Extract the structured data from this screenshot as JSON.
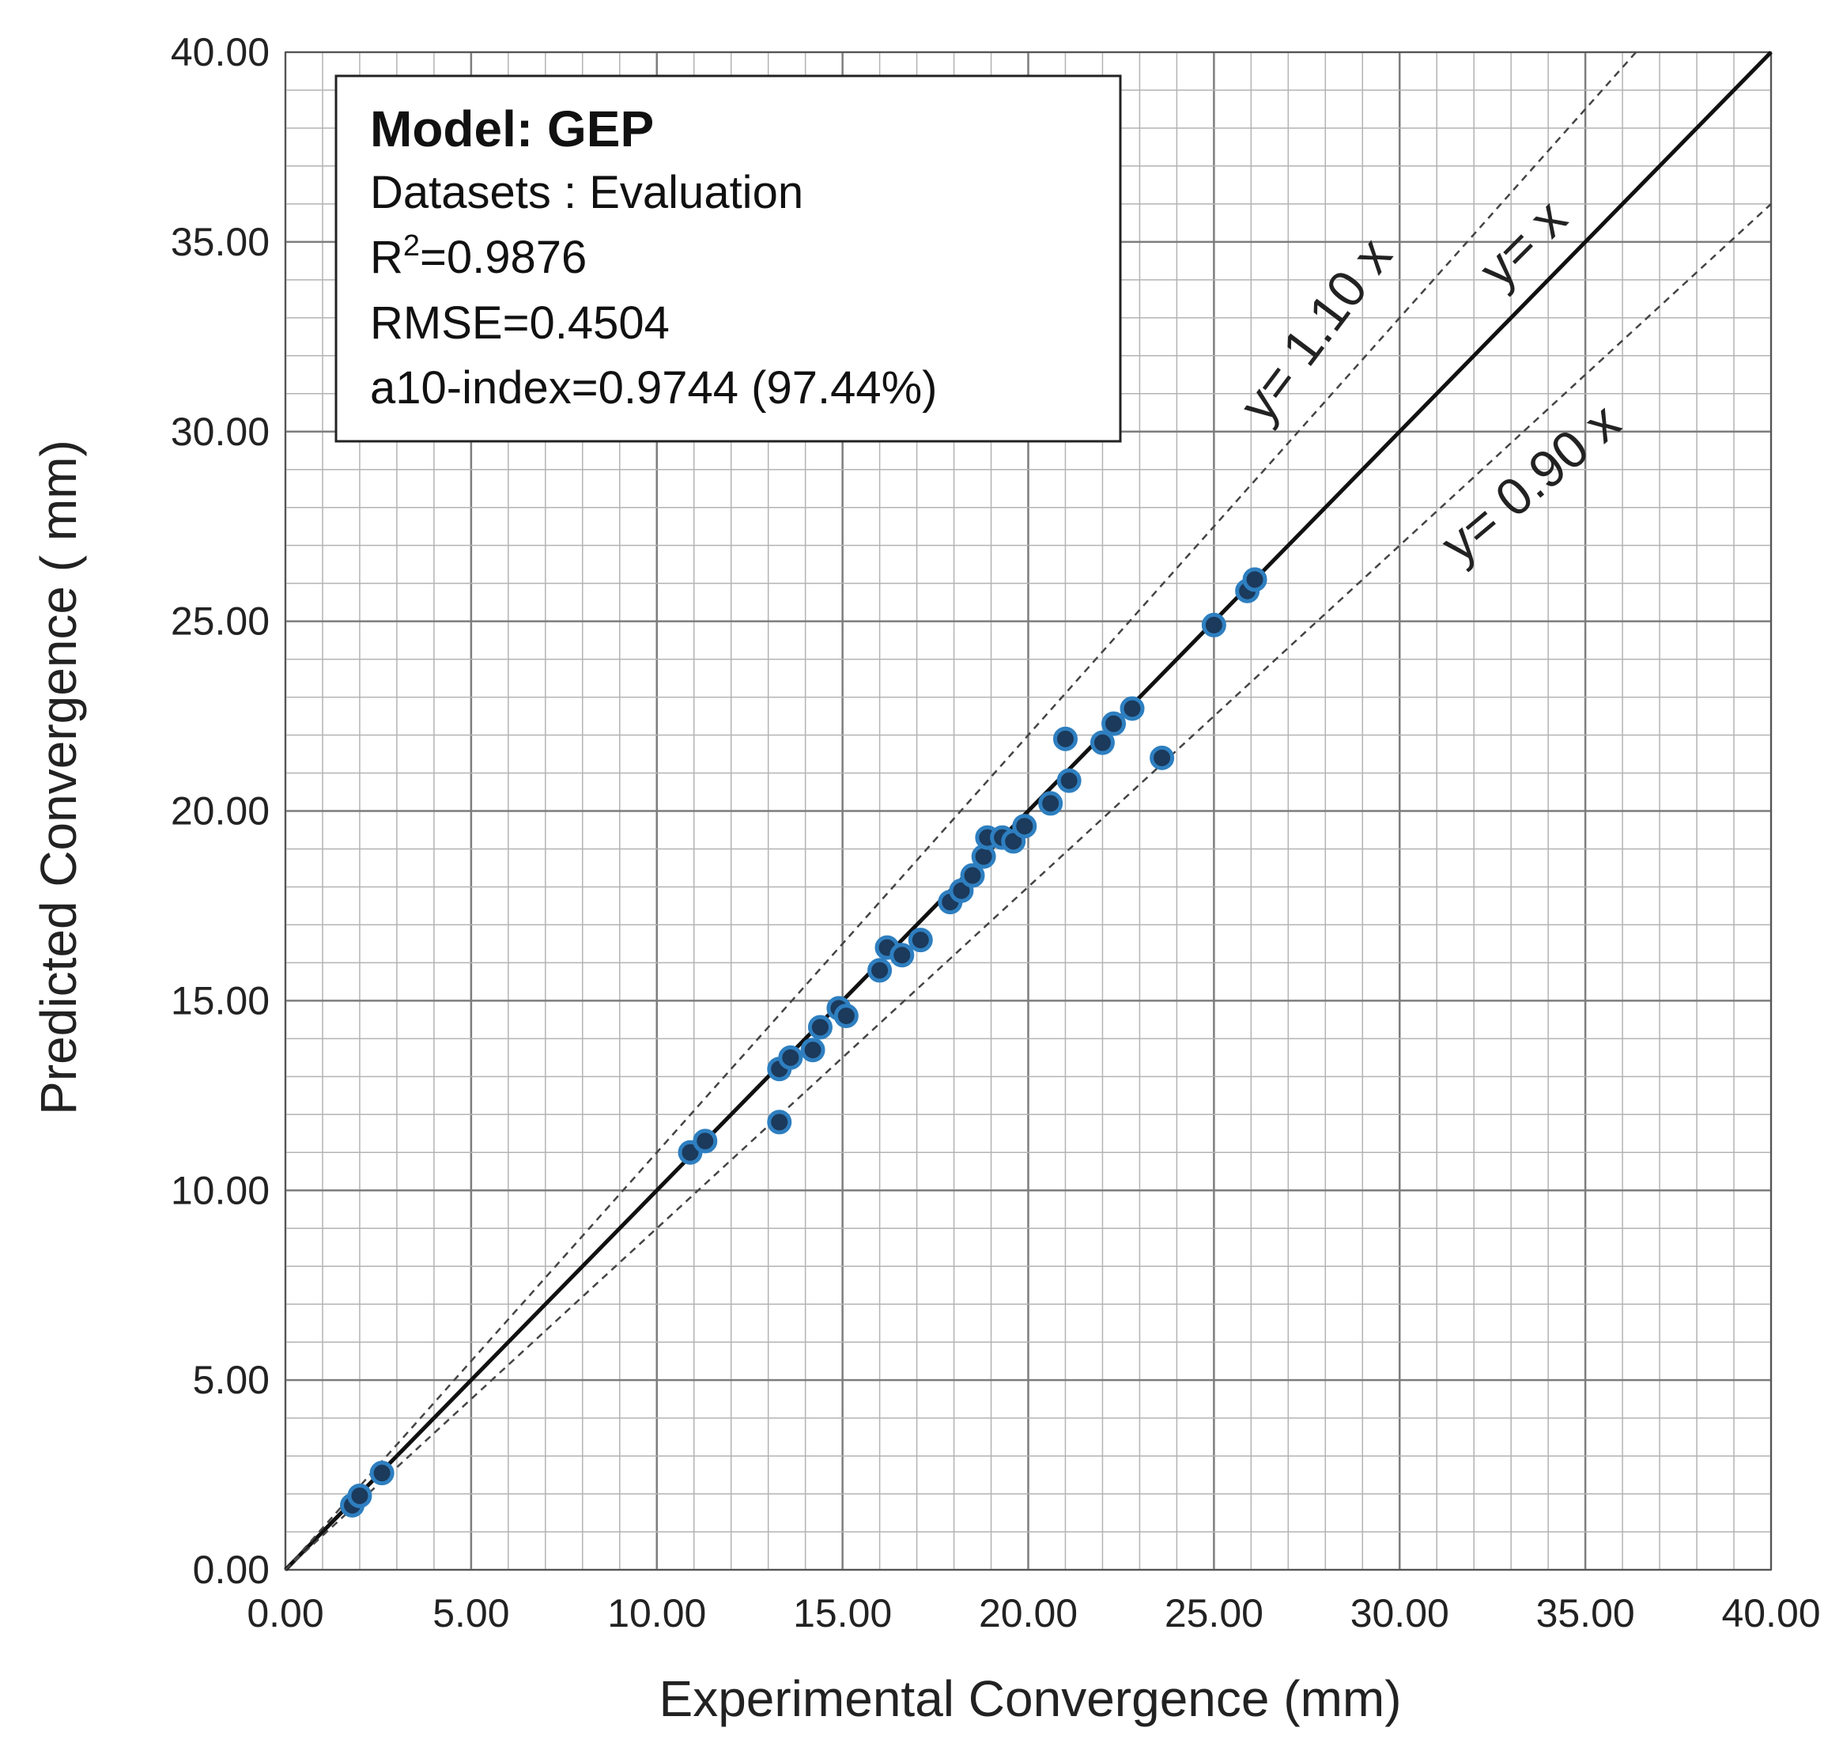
{
  "chart_data": {
    "type": "scatter",
    "xlabel": "Experimental  Convergence (mm)",
    "ylabel": "Predicted Convergence  ( mm)",
    "xlim": [
      0,
      40
    ],
    "ylim": [
      0,
      40
    ],
    "x_ticks": [
      "0.00",
      "5.00",
      "10.00",
      "15.00",
      "20.00",
      "25.00",
      "30.00",
      "35.00",
      "40.00"
    ],
    "y_ticks": [
      "0.00",
      "5.00",
      "10.00",
      "15.00",
      "20.00",
      "25.00",
      "30.00",
      "35.00",
      "40.00"
    ],
    "minor_grid_step": 1,
    "major_grid_step": 5,
    "legend": {
      "title": "Model: GEP",
      "dataset": "Datasets : Evaluation",
      "r2_prefix": "R",
      "r2_sup": "2",
      "r2_value": "=0.9876",
      "rmse": "RMSE=0.4504",
      "a10": "a10-index=0.9744  (97.44%)"
    },
    "reference_lines": [
      {
        "name": "y= x",
        "slope": 1.0,
        "style": "solid"
      },
      {
        "name": "y= 1.10 x",
        "slope": 1.1,
        "style": "dashed"
      },
      {
        "name": "y= 0.90 x",
        "slope": 0.9,
        "style": "dashed"
      }
    ],
    "series": [
      {
        "name": "Evaluation",
        "color": "#1b3a5c",
        "edge_color": "#2e7fc0",
        "points": [
          {
            "x": 1.8,
            "y": 1.7
          },
          {
            "x": 2.0,
            "y": 1.95
          },
          {
            "x": 2.6,
            "y": 2.55
          },
          {
            "x": 10.9,
            "y": 11.0
          },
          {
            "x": 11.3,
            "y": 11.3
          },
          {
            "x": 13.3,
            "y": 11.8
          },
          {
            "x": 13.3,
            "y": 13.2
          },
          {
            "x": 13.6,
            "y": 13.5
          },
          {
            "x": 14.2,
            "y": 13.7
          },
          {
            "x": 14.4,
            "y": 14.3
          },
          {
            "x": 14.9,
            "y": 14.8
          },
          {
            "x": 15.1,
            "y": 14.6
          },
          {
            "x": 16.0,
            "y": 15.8
          },
          {
            "x": 16.2,
            "y": 16.4
          },
          {
            "x": 16.6,
            "y": 16.2
          },
          {
            "x": 17.1,
            "y": 16.6
          },
          {
            "x": 17.9,
            "y": 17.6
          },
          {
            "x": 18.2,
            "y": 17.9
          },
          {
            "x": 18.5,
            "y": 18.3
          },
          {
            "x": 18.8,
            "y": 18.8
          },
          {
            "x": 18.9,
            "y": 19.3
          },
          {
            "x": 19.3,
            "y": 19.3
          },
          {
            "x": 19.6,
            "y": 19.2
          },
          {
            "x": 19.9,
            "y": 19.6
          },
          {
            "x": 20.6,
            "y": 20.2
          },
          {
            "x": 21.0,
            "y": 21.9
          },
          {
            "x": 21.1,
            "y": 20.8
          },
          {
            "x": 22.0,
            "y": 21.8
          },
          {
            "x": 22.3,
            "y": 22.3
          },
          {
            "x": 22.8,
            "y": 22.7
          },
          {
            "x": 23.6,
            "y": 21.4
          },
          {
            "x": 25.0,
            "y": 24.9
          },
          {
            "x": 25.9,
            "y": 25.8
          },
          {
            "x": 26.1,
            "y": 26.1
          }
        ]
      }
    ]
  }
}
